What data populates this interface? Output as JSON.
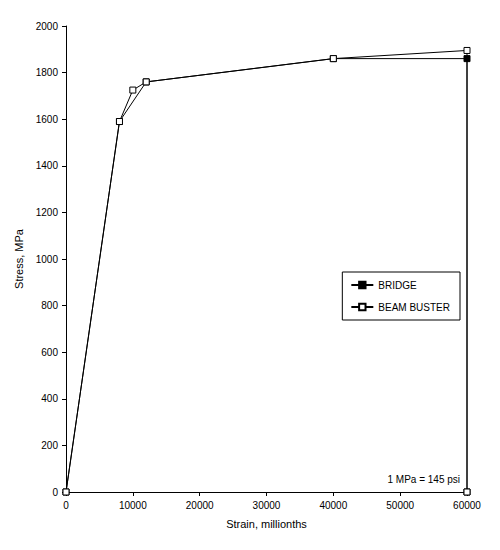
{
  "chart_data": {
    "type": "line",
    "xlabel": "Strain, millionths",
    "ylabel": "Stress, MPa",
    "annotations": [
      "1 MPa = 145 psi"
    ],
    "xlim": [
      0,
      60000
    ],
    "xticks": [
      0,
      10000,
      20000,
      30000,
      40000,
      50000,
      60000
    ],
    "ylim": [
      0,
      2000
    ],
    "yticks": [
      0,
      200,
      400,
      600,
      800,
      1000,
      1200,
      1400,
      1600,
      1800,
      2000
    ],
    "grid": false,
    "legend": "right",
    "series": [
      {
        "name": "BRIDGE",
        "color": "#000000",
        "marker": "square",
        "line_style": "solid",
        "x": [
          0,
          8000,
          12000,
          40000,
          60000,
          60000
        ],
        "values": [
          0,
          1590,
          1760,
          1860,
          1860,
          0
        ]
      },
      {
        "name": "BEAM BUSTER",
        "color": "#000000",
        "marker": "square-open",
        "line_style": "solid",
        "x": [
          0,
          8000,
          10000,
          12000,
          40000,
          60000,
          60000
        ],
        "values": [
          0,
          1590,
          1725,
          1760,
          1860,
          1895,
          0
        ]
      }
    ]
  }
}
